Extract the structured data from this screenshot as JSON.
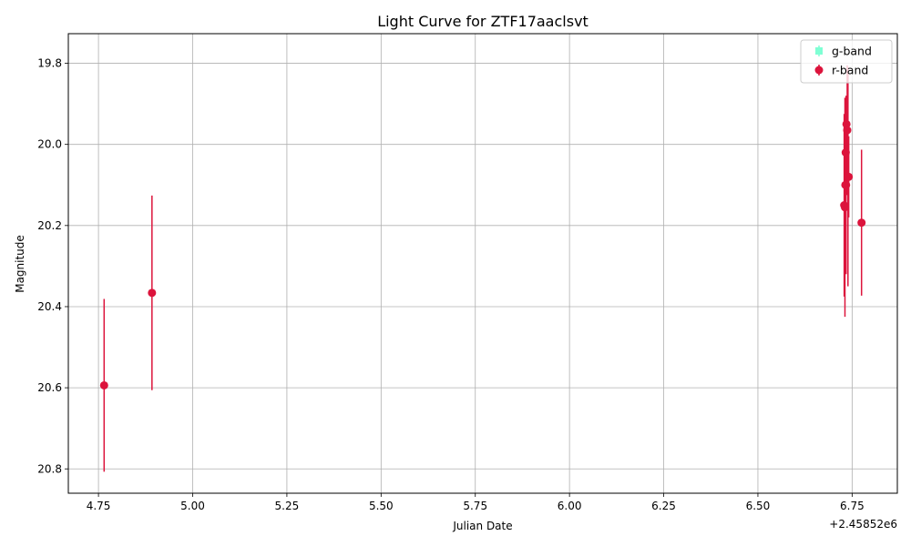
{
  "chart_data": {
    "type": "scatter",
    "title": "Light Curve for ZTF17aaclsvt",
    "xlabel": "Julian Date",
    "ylabel": "Magnitude",
    "x_offset_label": "+2.45852e6",
    "x_ticks": [
      "4.75",
      "5.00",
      "5.25",
      "5.50",
      "5.75",
      "6.00",
      "6.25",
      "6.50",
      "6.75"
    ],
    "y_ticks": [
      "19.8",
      "20.0",
      "20.2",
      "20.4",
      "20.6",
      "20.8"
    ],
    "xlim": [
      4.67,
      6.87
    ],
    "ylim": [
      20.86,
      19.727
    ],
    "y_inverted": true,
    "grid": true,
    "legend_position": "top-right",
    "series": [
      {
        "name": "g-band",
        "color": "#7fffd4",
        "marker": "square",
        "points": []
      },
      {
        "name": "r-band",
        "color": "#dc143c",
        "marker": "circle",
        "points": [
          {
            "x": 4.765,
            "y": 20.594,
            "err": 0.213
          },
          {
            "x": 4.892,
            "y": 20.366,
            "err": 0.24
          },
          {
            "x": 6.729,
            "y": 20.15,
            "err": 0.225
          },
          {
            "x": 6.731,
            "y": 20.155,
            "err": 0.27
          },
          {
            "x": 6.732,
            "y": 20.1,
            "err": 0.18
          },
          {
            "x": 6.733,
            "y": 20.02,
            "err": 0.1
          },
          {
            "x": 6.734,
            "y": 20.1,
            "err": 0.22
          },
          {
            "x": 6.735,
            "y": 19.95,
            "err": 0.07
          },
          {
            "x": 6.737,
            "y": 19.965,
            "err": 0.16
          },
          {
            "x": 6.739,
            "y": 20.08,
            "err": 0.27
          },
          {
            "x": 6.741,
            "y": 20.08,
            "err": 0.1
          },
          {
            "x": 6.775,
            "y": 20.193,
            "err": 0.18
          }
        ]
      }
    ]
  },
  "colors": {
    "grid": "#b0b0b0",
    "axes": "#000000",
    "background": "#ffffff"
  }
}
